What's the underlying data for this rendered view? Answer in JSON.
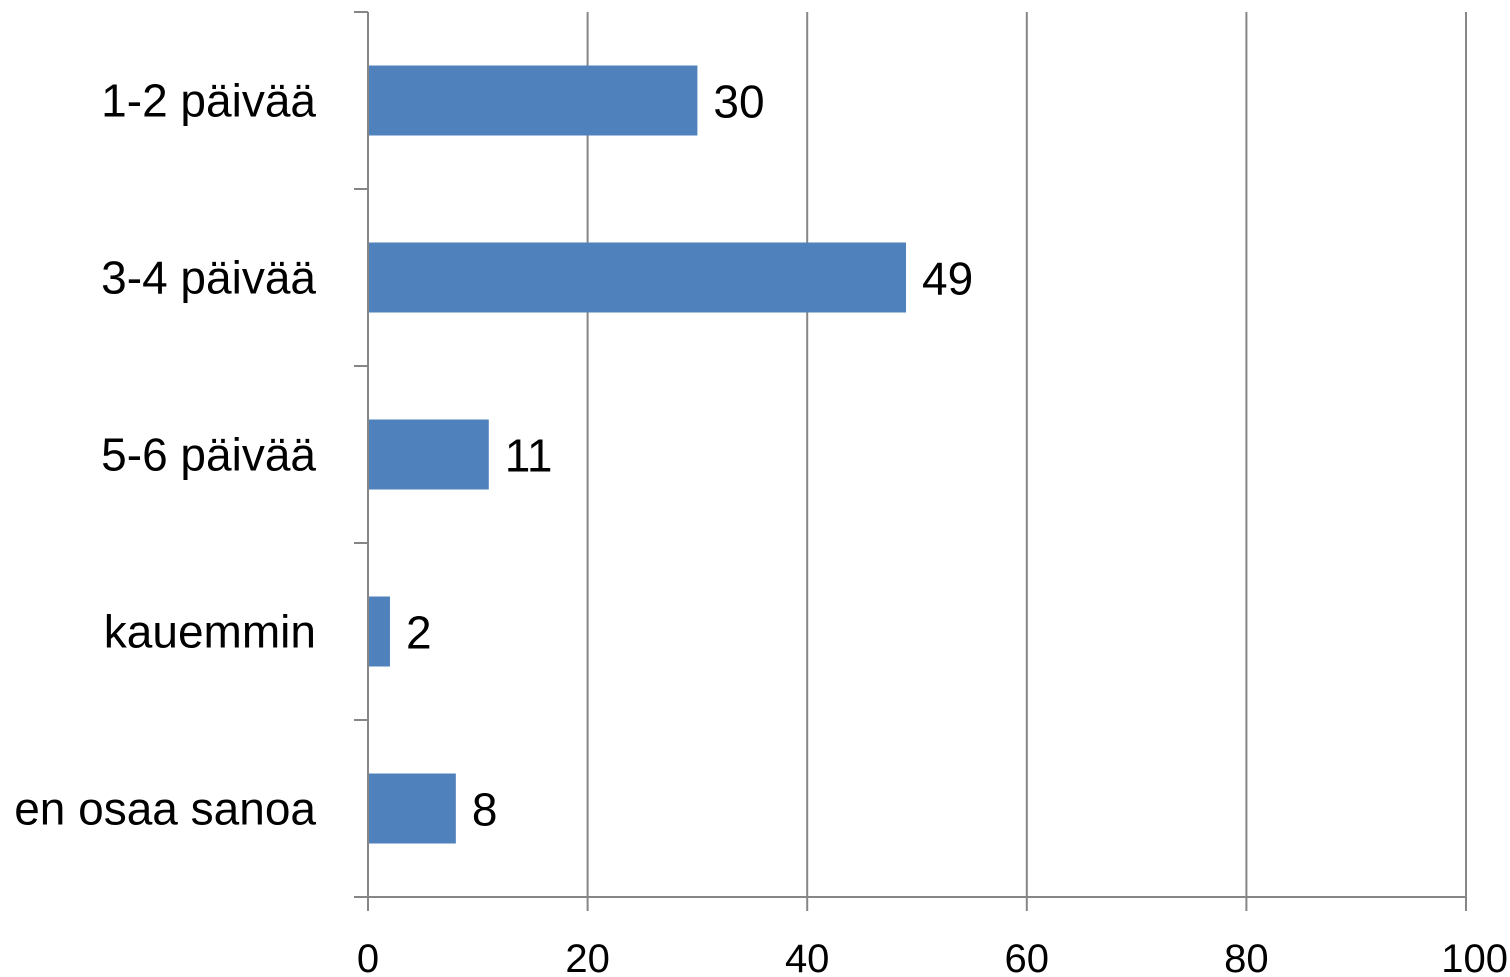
{
  "chart_data": {
    "type": "bar",
    "orientation": "horizontal",
    "categories": [
      "1-2 päivää",
      "3-4 päivää",
      "5-6 päivää",
      "kauemmin",
      "en osaa sanoa"
    ],
    "values": [
      30,
      49,
      11,
      2,
      8
    ],
    "data_labels": [
      "30",
      "49",
      "11",
      "2",
      "8"
    ],
    "xlim": [
      0,
      100
    ],
    "x_ticks": [
      0,
      20,
      40,
      60,
      80,
      100
    ],
    "x_tick_labels": [
      "0",
      "20",
      "40",
      "60",
      "80",
      "100"
    ],
    "title": "",
    "xlabel": "",
    "ylabel": "",
    "grid": "vertical",
    "legend": "none",
    "bar_color": "#4f81bd",
    "grid_color": "#868686",
    "axis_color": "#868686"
  }
}
